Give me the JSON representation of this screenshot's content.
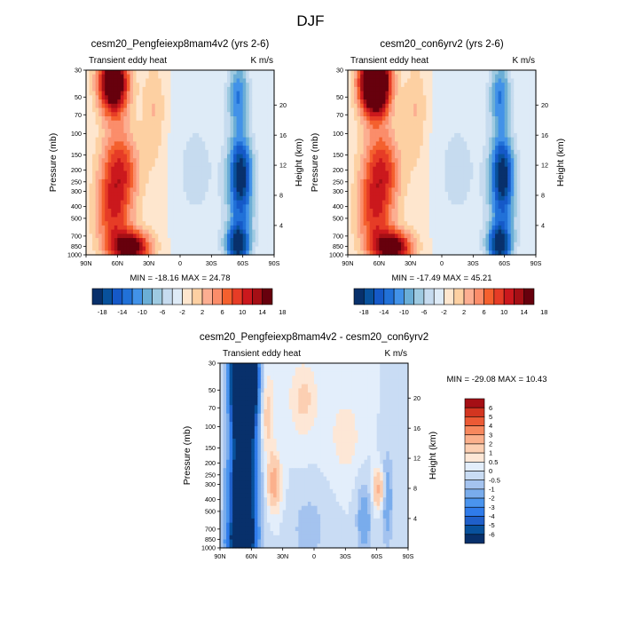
{
  "page_title": "DJF",
  "panel_subtitle": "Transient eddy heat",
  "units": "K m/s",
  "ylabel": "Pressure (mb)",
  "ylabel_right": "Height (km)",
  "chart_data": [
    {
      "type": "heatmap",
      "title": "cesm20_Pengfeiexp8mam4v2 (yrs 2-6)",
      "subtitle": "Transient eddy heat",
      "units": "K m/s",
      "ylabel": "Pressure (mb)",
      "ylabel_right": "Height (km)",
      "x_ticks": [
        "90N",
        "60N",
        "30N",
        "0",
        "30S",
        "60S",
        "90S"
      ],
      "x_tick_lat": [
        90,
        60,
        30,
        0,
        -30,
        -60,
        -90
      ],
      "y_ticks": [
        30,
        50,
        70,
        100,
        150,
        200,
        250,
        300,
        400,
        500,
        700,
        850,
        1000
      ],
      "height_ticks": [
        4,
        8,
        12,
        16,
        20
      ],
      "ylim": [
        1000,
        30
      ],
      "xlim": [
        90,
        -90
      ],
      "min": -18.16,
      "max": 24.78,
      "stats": "MIN = -18.16  MAX =  24.78",
      "colorbar_levels": [
        -18,
        -16,
        -14,
        -12,
        -10,
        -8,
        -6,
        -4,
        -2,
        0,
        2,
        4,
        6,
        8,
        10,
        12,
        14,
        16,
        18
      ],
      "colorbar_labels": [
        "-18",
        "-14",
        "-10",
        "-6",
        "-2",
        "2",
        "6",
        "10",
        "14",
        "18"
      ],
      "features": [
        {
          "lat": 62,
          "p": 40,
          "value": 24
        },
        {
          "lat": 48,
          "p": 860,
          "value": 20
        },
        {
          "lat": 60,
          "p": 200,
          "value": 12
        },
        {
          "lat": -58,
          "p": 200,
          "value": -17
        },
        {
          "lat": -55,
          "p": 820,
          "value": -17
        }
      ]
    },
    {
      "type": "heatmap",
      "title": "cesm20_con6yrv2 (yrs 2-6)",
      "subtitle": "Transient eddy heat",
      "units": "K m/s",
      "ylabel": "Pressure (mb)",
      "ylabel_right": "Height (km)",
      "x_ticks": [
        "90N",
        "60N",
        "30N",
        "0",
        "30S",
        "60S",
        "90S"
      ],
      "x_tick_lat": [
        90,
        60,
        30,
        0,
        -30,
        -60,
        -90
      ],
      "y_ticks": [
        30,
        50,
        70,
        100,
        150,
        200,
        250,
        300,
        400,
        500,
        700,
        850,
        1000
      ],
      "height_ticks": [
        4,
        8,
        12,
        16,
        20
      ],
      "ylim": [
        1000,
        30
      ],
      "xlim": [
        90,
        -90
      ],
      "min": -17.49,
      "max": 45.21,
      "stats": "MIN = -17.49  MAX =  45.21",
      "colorbar_levels": [
        -18,
        -16,
        -14,
        -12,
        -10,
        -8,
        -6,
        -4,
        -2,
        0,
        2,
        4,
        6,
        8,
        10,
        12,
        14,
        16,
        18
      ],
      "colorbar_labels": [
        "-18",
        "-14",
        "-10",
        "-6",
        "-2",
        "2",
        "6",
        "10",
        "14",
        "18"
      ],
      "features": [
        {
          "lat": 65,
          "p": 45,
          "value": 40
        },
        {
          "lat": 48,
          "p": 860,
          "value": 21
        },
        {
          "lat": 60,
          "p": 200,
          "value": 13
        },
        {
          "lat": -58,
          "p": 200,
          "value": -17
        },
        {
          "lat": -55,
          "p": 820,
          "value": -16
        }
      ]
    },
    {
      "type": "heatmap",
      "title": "cesm20_Pengfeiexp8mam4v2 - cesm20_con6yrv2",
      "subtitle": "Transient eddy heat",
      "units": "K m/s",
      "ylabel": "Pressure (mb)",
      "ylabel_right": "Height (km)",
      "x_ticks": [
        "90N",
        "60N",
        "30N",
        "0",
        "30S",
        "60S",
        "90S"
      ],
      "x_tick_lat": [
        90,
        60,
        30,
        0,
        -30,
        -60,
        -90
      ],
      "y_ticks": [
        30,
        50,
        70,
        100,
        150,
        200,
        250,
        300,
        400,
        500,
        700,
        850,
        1000
      ],
      "height_ticks": [
        4,
        8,
        12,
        16,
        20
      ],
      "ylim": [
        1000,
        30
      ],
      "xlim": [
        90,
        -90
      ],
      "min": -29.08,
      "max": 10.43,
      "stats": "MIN = -29.08  MAX =  10.43",
      "colorbar_levels": [
        -6,
        -5,
        -4,
        -3,
        -2,
        -1,
        -0.5,
        0,
        0.5,
        1,
        2,
        3,
        4,
        5,
        6
      ],
      "colorbar_labels": [
        "6",
        "5",
        "4",
        "3",
        "2",
        "1",
        "0.5",
        "0",
        "-0.5",
        "-1",
        "-2",
        "-3",
        "-4",
        "-5",
        "-6"
      ],
      "features": [
        {
          "lat": 65,
          "p": 60,
          "value": -28
        },
        {
          "lat": 38,
          "p": 300,
          "value": 2
        },
        {
          "lat": -62,
          "p": 330,
          "value": 3
        },
        {
          "lat": -45,
          "p": 600,
          "value": -1
        }
      ]
    }
  ]
}
